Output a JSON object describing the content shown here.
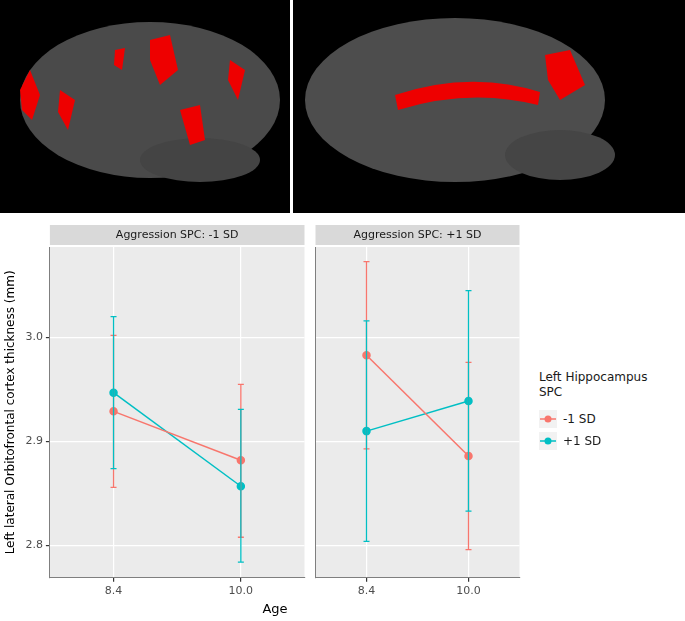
{
  "chart_data": {
    "type": "line",
    "x_label": "Age",
    "y_label": "Left lateral Orbitofrontal cortex thickness (mm)",
    "legend_title": "Left Hippocampus SPC",
    "legend": "right",
    "grid": true,
    "marker": "circle",
    "categories": [
      "8.4",
      "10.0"
    ],
    "ylim": [
      2.769,
      3.087
    ],
    "yticks": [
      2.8,
      2.9,
      {
        "value": 3,
        "label": "3.0"
      }
    ],
    "panels": [
      {
        "title": "Aggression SPC: -1 SD",
        "series": [
          {
            "name": "-1 SD",
            "color": "#F8766D",
            "values": [
              2.929,
              2.882
            ],
            "error_low": [
              2.856,
              2.808
            ],
            "error_high": [
              3.002,
              2.955
            ]
          },
          {
            "name": "+1 SD",
            "color": "#00BFC4",
            "values": [
              2.947,
              2.857
            ],
            "error_low": [
              2.874,
              2.784
            ],
            "error_high": [
              3.02,
              2.931
            ]
          }
        ]
      },
      {
        "title": "Aggression SPC: +1 SD",
        "series": [
          {
            "name": "-1 SD",
            "color": "#F8766D",
            "values": [
              2.983,
              2.886
            ],
            "error_low": [
              2.893,
              2.796
            ],
            "error_high": [
              3.073,
              2.976
            ]
          },
          {
            "name": "+1 SD",
            "color": "#00BFC4",
            "values": [
              2.91,
              2.939
            ],
            "error_low": [
              2.804,
              2.833
            ],
            "error_high": [
              3.016,
              3.045
            ]
          }
        ]
      }
    ]
  }
}
